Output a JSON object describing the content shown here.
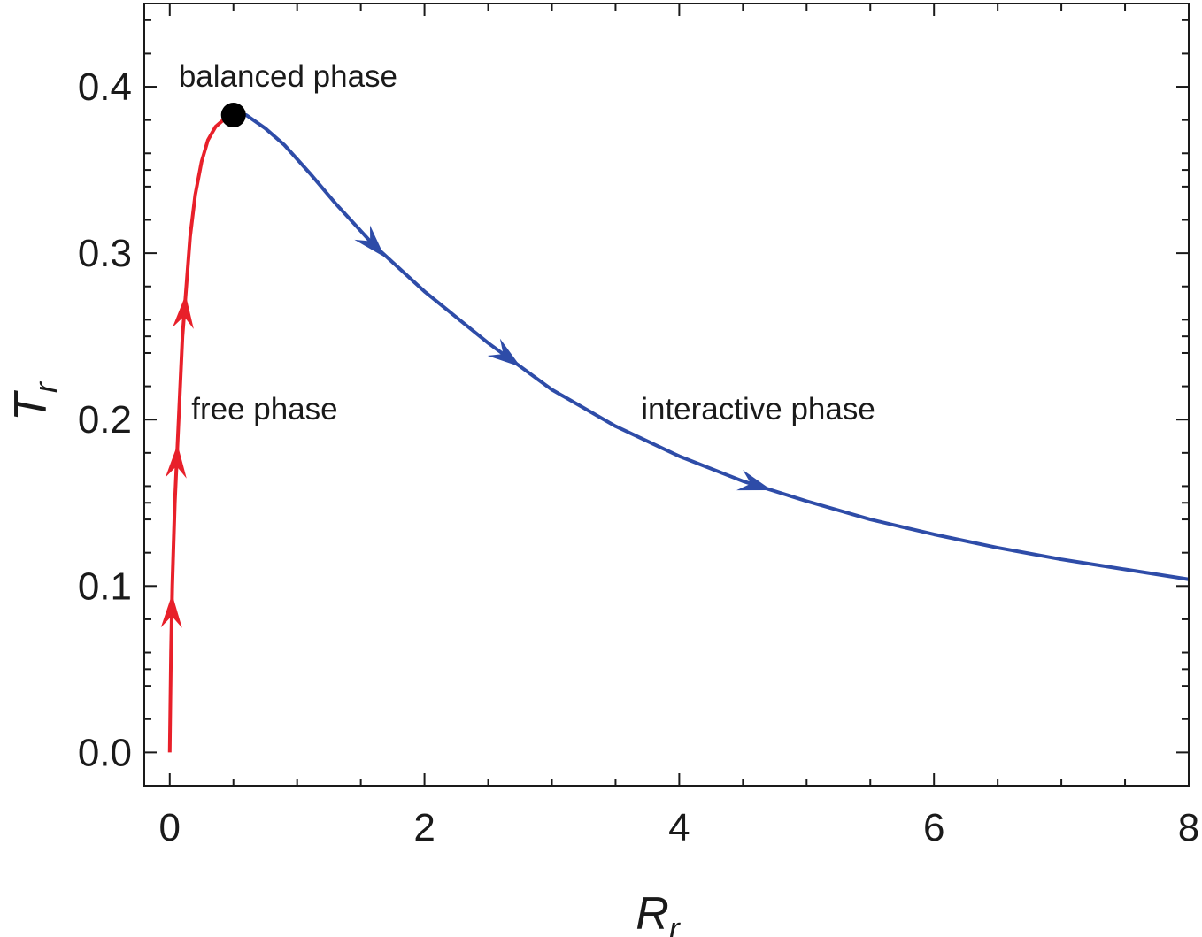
{
  "chart_data": {
    "type": "line",
    "xlabel": {
      "main": "R",
      "sub": "r"
    },
    "ylabel": {
      "main": "T",
      "sub": "r"
    },
    "xlim": [
      -0.2,
      8.0
    ],
    "ylim": [
      -0.02,
      0.45
    ],
    "x_ticks": [
      0,
      2,
      4,
      6,
      8
    ],
    "x_tick_labels": [
      "0",
      "2",
      "4",
      "6",
      "8"
    ],
    "y_ticks": [
      0.0,
      0.1,
      0.2,
      0.3,
      0.4
    ],
    "y_tick_labels": [
      "0.0",
      "0.1",
      "0.2",
      "0.3",
      "0.4"
    ],
    "grid": false,
    "series": [
      {
        "color": "#e8202a",
        "x": [
          0.0,
          0.005,
          0.01,
          0.02,
          0.04,
          0.07,
          0.1,
          0.13,
          0.16,
          0.2,
          0.25,
          0.3,
          0.36,
          0.42,
          0.5
        ],
        "y": [
          0.0,
          0.03,
          0.06,
          0.1,
          0.15,
          0.2,
          0.25,
          0.28,
          0.31,
          0.335,
          0.355,
          0.368,
          0.376,
          0.38,
          0.383
        ],
        "arrows_at_y": [
          0.085,
          0.175,
          0.265
        ]
      },
      {
        "color": "#2e4ca8",
        "x": [
          0.5,
          0.6,
          0.75,
          0.9,
          1.1,
          1.3,
          1.6,
          2.0,
          2.5,
          3.0,
          3.5,
          4.0,
          4.5,
          5.0,
          5.5,
          6.0,
          6.5,
          7.0,
          7.5,
          8.0
        ],
        "y": [
          0.383,
          0.383,
          0.375,
          0.365,
          0.348,
          0.33,
          0.305,
          0.277,
          0.246,
          0.218,
          0.196,
          0.178,
          0.163,
          0.151,
          0.14,
          0.131,
          0.123,
          0.116,
          0.11,
          0.104
        ],
        "arrows_at_x": [
          1.6,
          2.65,
          4.6
        ]
      }
    ],
    "points": [
      {
        "x": 0.5,
        "y": 0.383,
        "color": "#000000"
      }
    ],
    "annotations": [
      {
        "text": "balanced phase",
        "x": 0.07,
        "y": 0.4
      },
      {
        "text": "free phase",
        "x": 0.17,
        "y": 0.2
      },
      {
        "text": "interactive phase",
        "x": 3.7,
        "y": 0.2
      }
    ]
  }
}
